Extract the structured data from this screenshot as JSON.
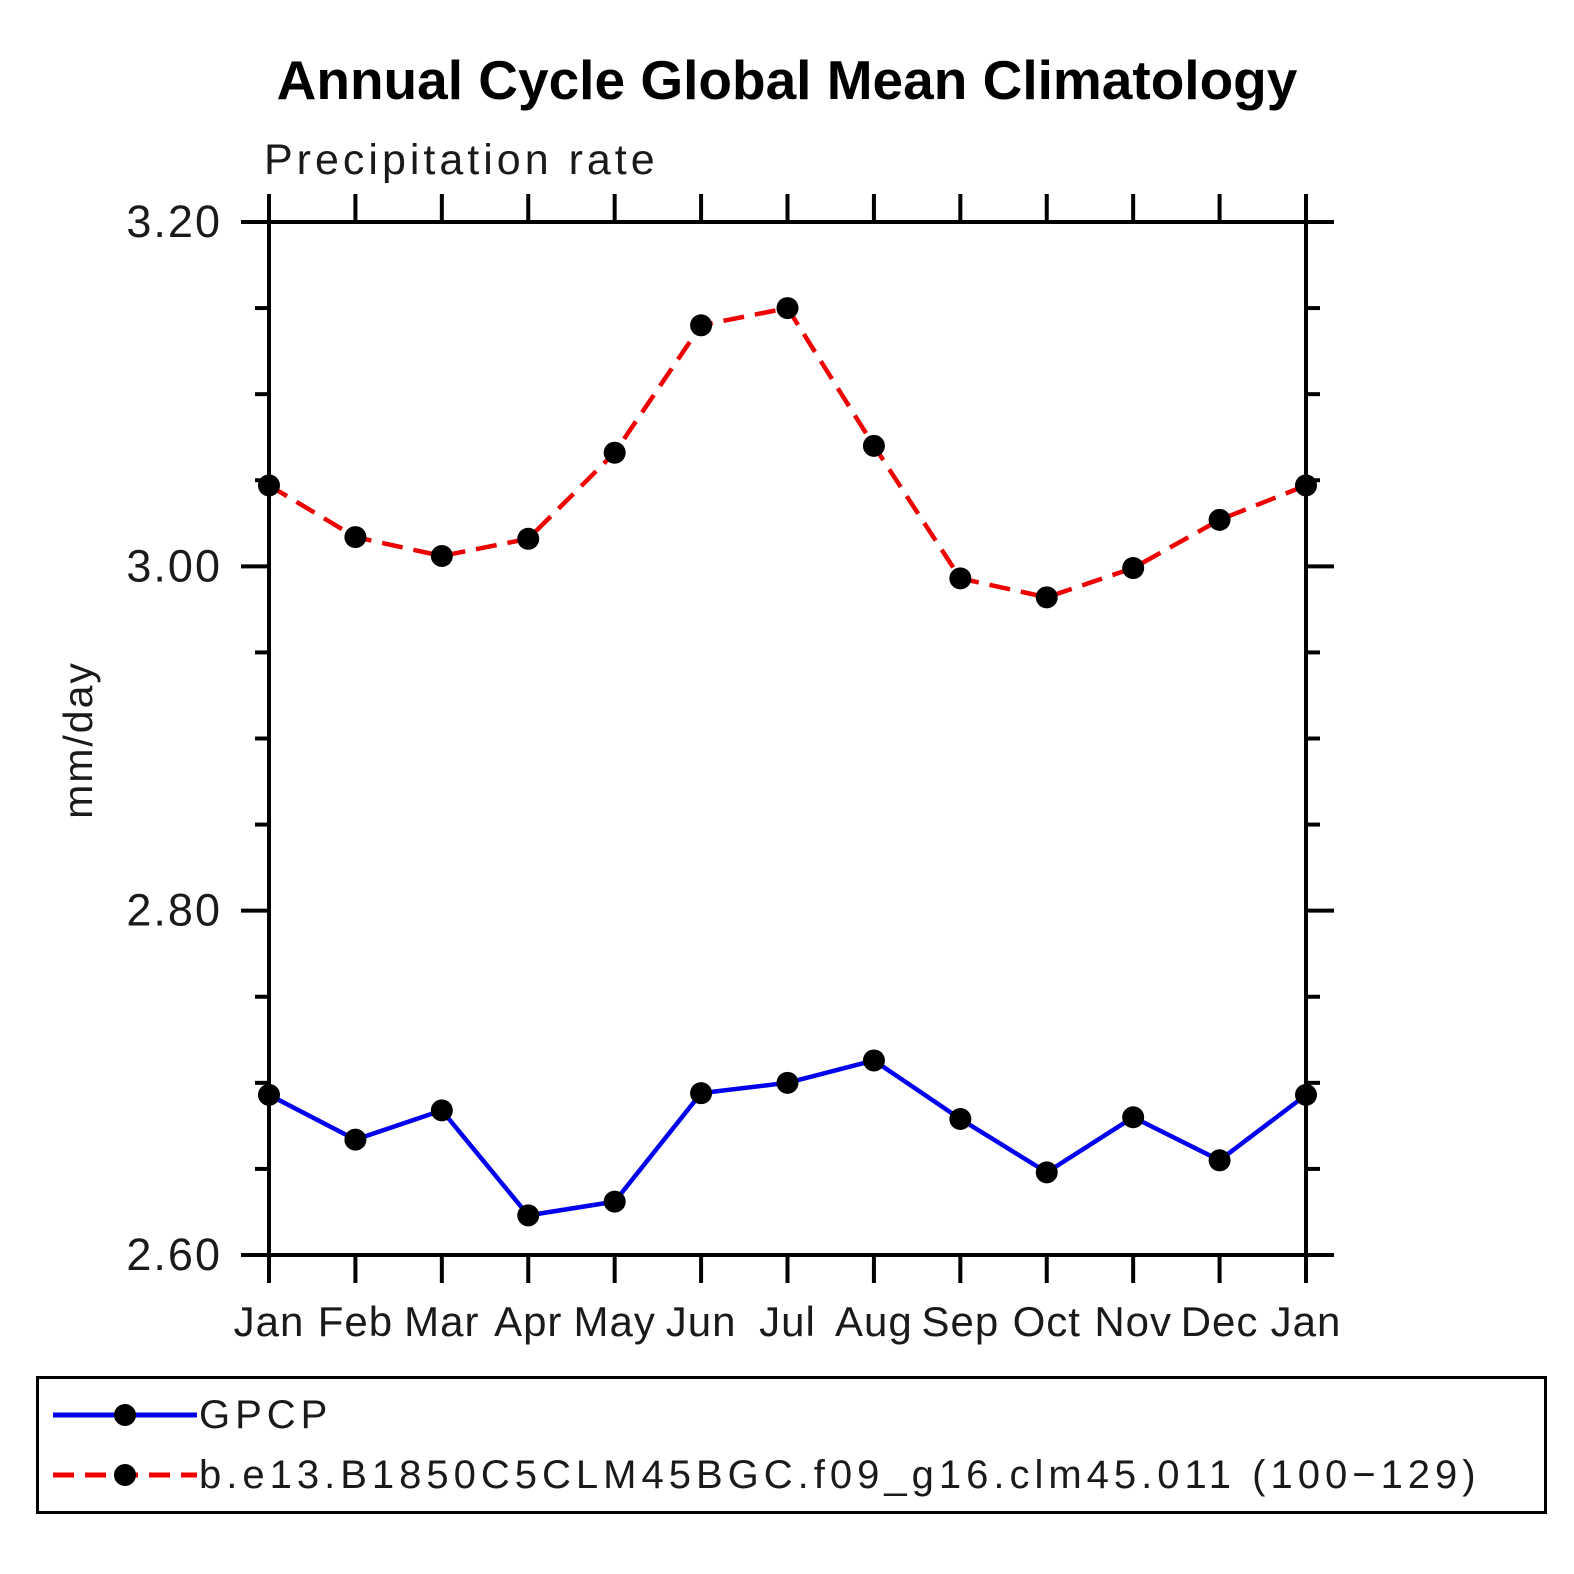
{
  "page": {
    "background": "#ffffff",
    "text_color": "#000000"
  },
  "chart_data": {
    "type": "line",
    "title": "Annual Cycle Global Mean Climatology",
    "subtitle": "Precipitation rate",
    "ylabel": "mm/day",
    "categories": [
      "Jan",
      "Feb",
      "Mar",
      "Apr",
      "May",
      "Jun",
      "Jul",
      "Aug",
      "Sep",
      "Oct",
      "Nov",
      "Dec",
      "Jan"
    ],
    "ylim": [
      2.6,
      3.2
    ],
    "yticks_major": [
      3.2,
      3.0,
      2.8,
      2.6
    ],
    "ytick_labels": [
      "3.20",
      "3.00",
      "2.80",
      "2.60"
    ],
    "yticks_minor": [
      3.15,
      3.1,
      3.05,
      2.95,
      2.9,
      2.85,
      2.75,
      2.7,
      2.65
    ],
    "grid": false,
    "legend_position": "bottom-box",
    "series": [
      {
        "name": "GPCP",
        "slug": "gpcp",
        "color": "#0000ee",
        "line_style": "solid",
        "marker": "filled-circle",
        "marker_color": "#000000",
        "values": [
          2.693,
          2.667,
          2.684,
          2.623,
          2.631,
          2.694,
          2.7,
          2.713,
          2.679,
          2.648,
          2.68,
          2.655,
          2.693
        ]
      },
      {
        "name": "b.e13.B1850C5CLM45BGC.f09_g16.clm45.011 (100−129)",
        "slug": "model-b-e13",
        "color": "#ee0000",
        "line_style": "dashed",
        "marker": "filled-circle",
        "marker_color": "#000000",
        "values": [
          3.047,
          3.017,
          3.006,
          3.016,
          3.066,
          3.14,
          3.15,
          3.07,
          2.993,
          2.982,
          2.999,
          3.027,
          3.047
        ]
      }
    ]
  }
}
